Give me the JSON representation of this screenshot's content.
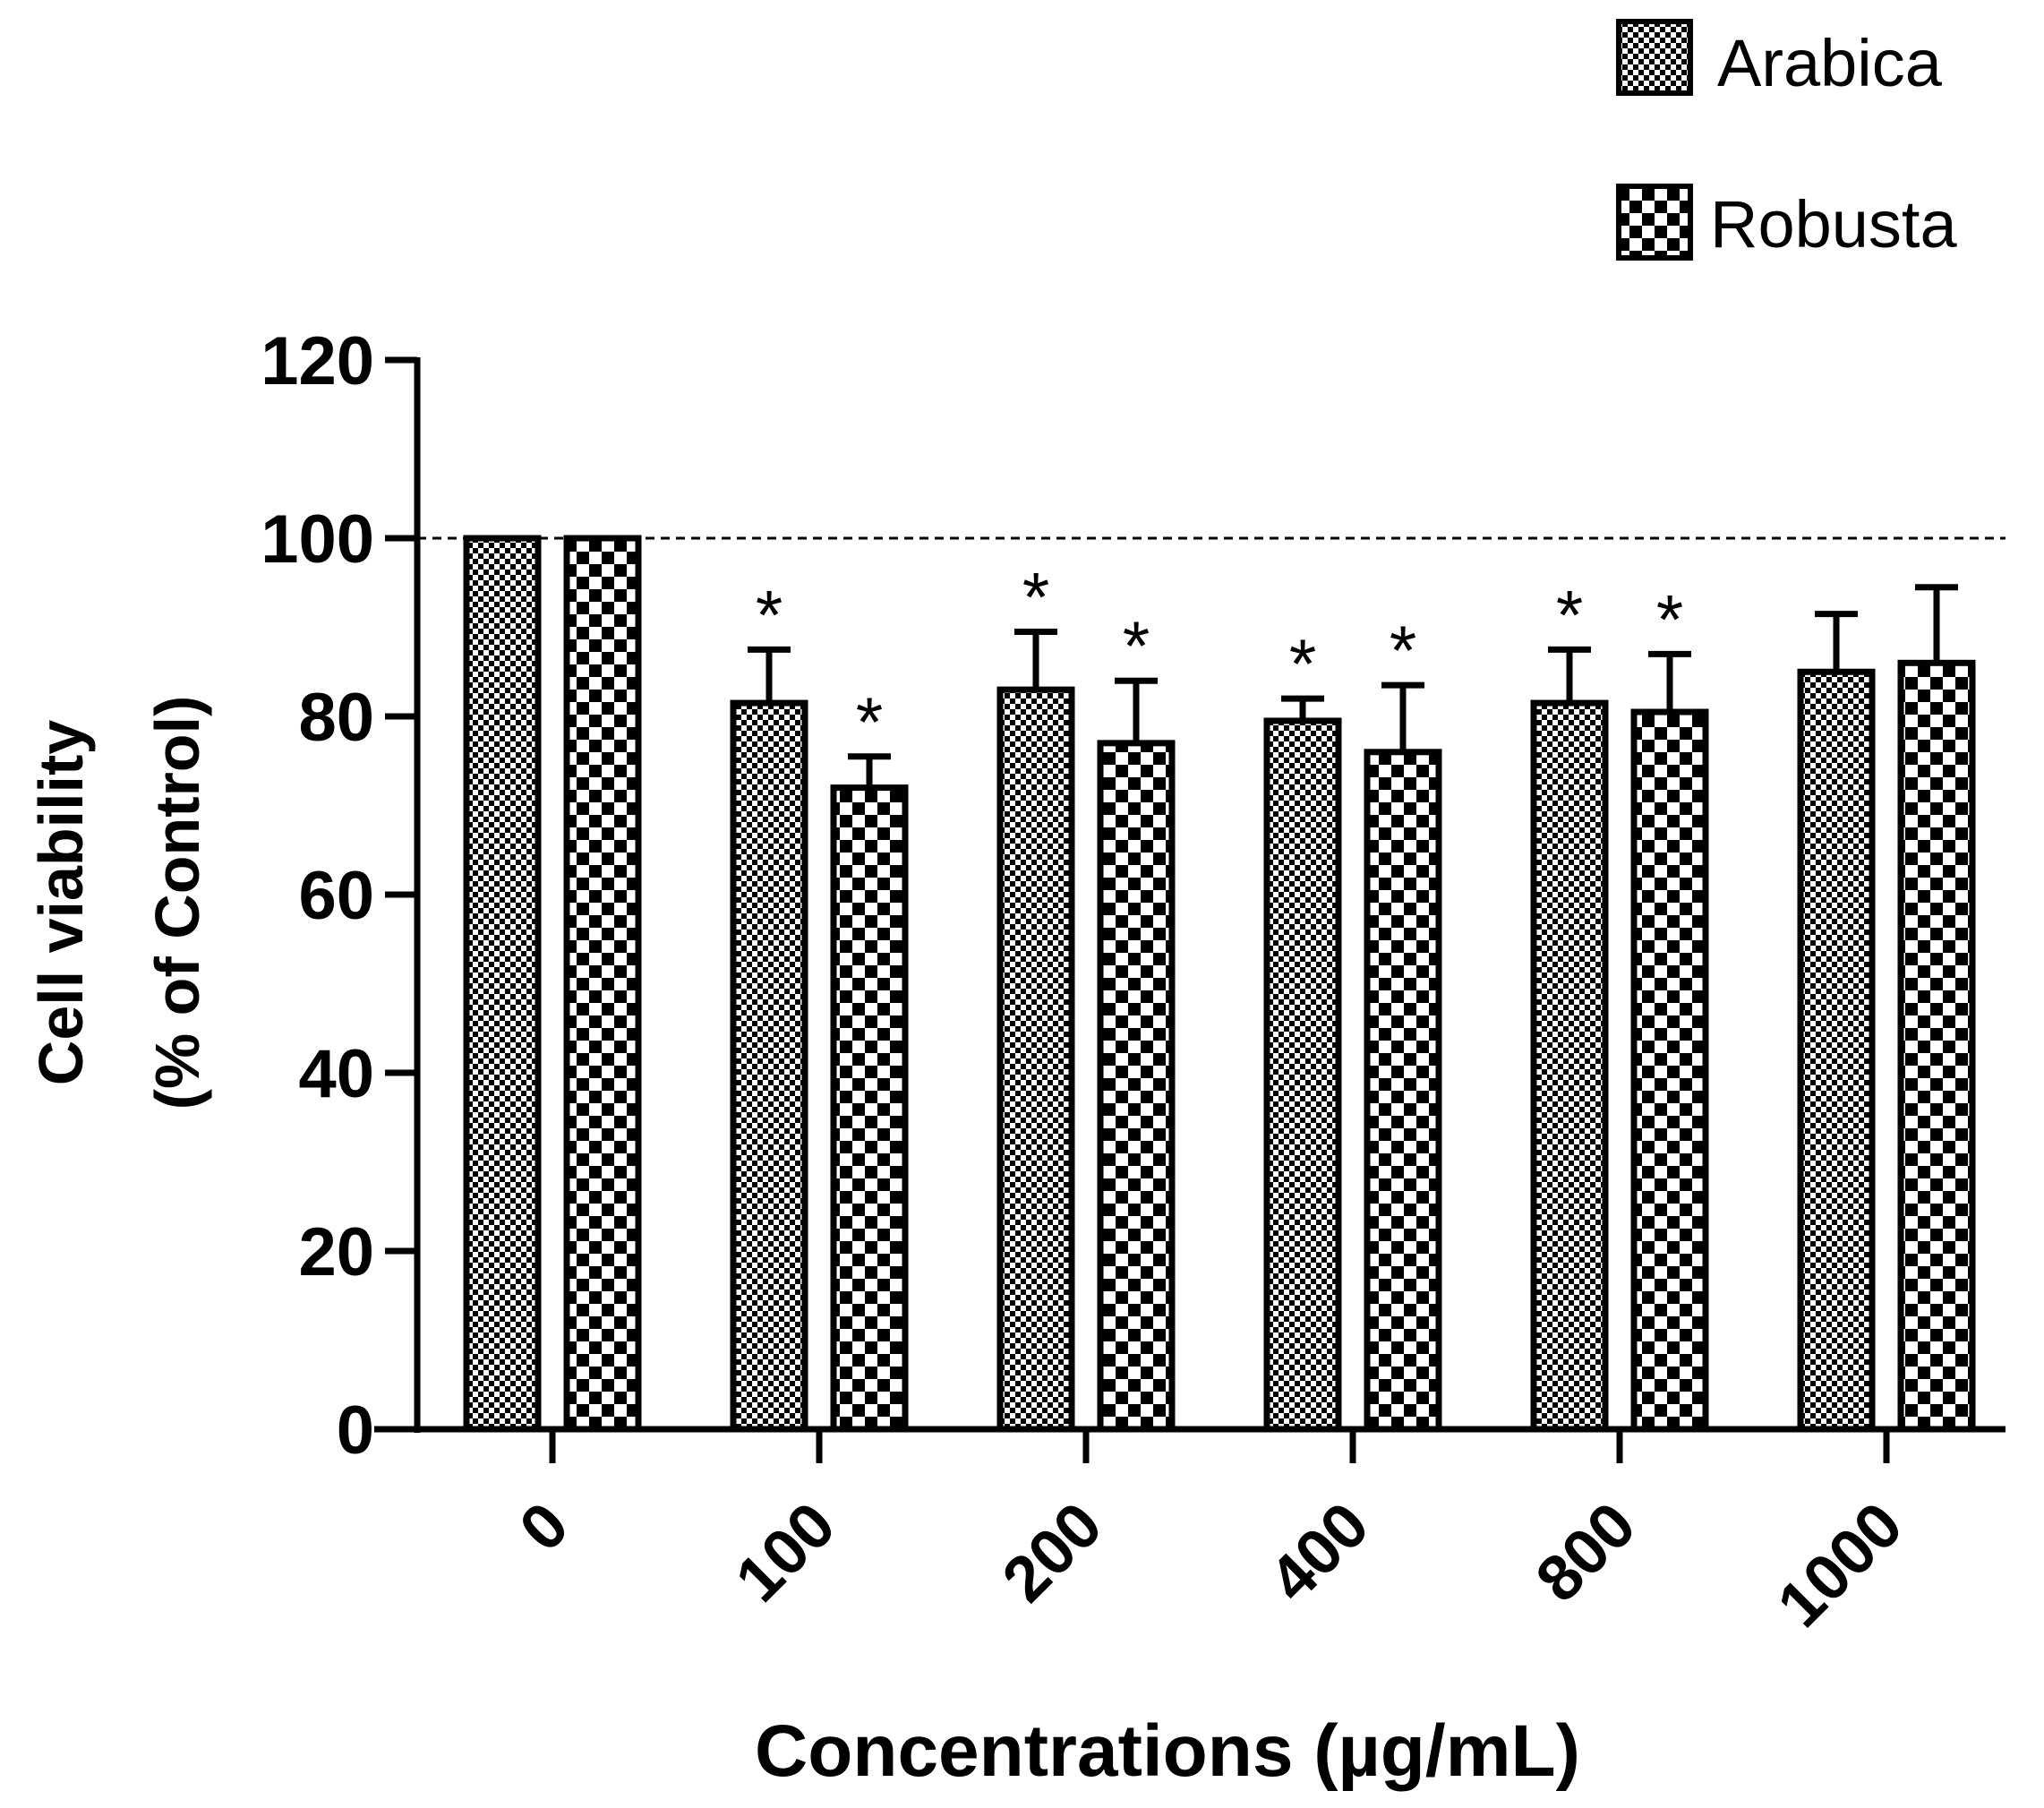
{
  "chart_data": {
    "type": "bar",
    "title": "",
    "xlabel": "Concentrations (µg/mL)",
    "ylabel_line1": "Cell viability",
    "ylabel_line2": "(% of Control)",
    "ylim": [
      0,
      120
    ],
    "yticks": [
      "0",
      "20",
      "40",
      "60",
      "80",
      "100",
      "120"
    ],
    "categories": [
      "0",
      "100",
      "200",
      "400",
      "800",
      "1000"
    ],
    "reference_line": 100,
    "legend_position": "top-right",
    "significance_marker": "*",
    "series": [
      {
        "name": "Arabica",
        "pattern": "fine-checker",
        "values": [
          100,
          81.5,
          83,
          79.5,
          81.5,
          85
        ],
        "errors": [
          0,
          6,
          6.5,
          2.5,
          6,
          6.5
        ],
        "significant": [
          false,
          true,
          true,
          true,
          true,
          false
        ]
      },
      {
        "name": "Robusta",
        "pattern": "coarse-checker",
        "values": [
          100,
          72,
          77,
          76,
          80.5,
          86
        ],
        "errors": [
          0,
          3.5,
          7,
          7.5,
          6.5,
          8.5
        ],
        "significant": [
          false,
          true,
          true,
          true,
          true,
          false
        ]
      }
    ]
  },
  "colors": {
    "ink": "#000000",
    "background": "#ffffff"
  }
}
